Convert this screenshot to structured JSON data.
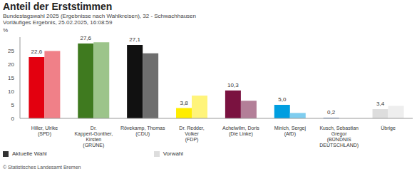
{
  "chart_data": {
    "type": "bar",
    "title": "Anteil der Erststimmen",
    "subtitle": [
      "Bundestagswahl 2025 (Ergebnisse nach Wahlkreisen), 32 - Schwachhausen",
      "Vorläufiges Ergebnis, 25.02.2025, 16:08:59"
    ],
    "y_label": "%",
    "source": "© Statistisches Landesamt Bremen",
    "categories": [
      "Hiller, Ulrike (SPD)",
      "Dr. Kappert-Gonther, Kirsten (GRÜNE)",
      "Rövekamp, Thomas (CDU)",
      "Dr. Redder, Volker (FDP)",
      "Achelwilm, Doris (Die Linke)",
      "Minich, Sergej (AfD)",
      "Kusch, Sebastian Gregor (BÜNDNIS DEUTSCHLAND)",
      "Übrige"
    ],
    "series": [
      {
        "name": "Aktuelle Wahl",
        "color": "#333333",
        "colors": [
          "#e3000f",
          "#3f7a1f",
          "#111111",
          "#ffed00",
          "#7a1240",
          "#009ee0",
          "#1f4e9a",
          "#dddddd"
        ],
        "values": [
          22.6,
          27.6,
          27.1,
          3.8,
          10.3,
          5.0,
          0.2,
          3.4
        ],
        "value_labels": [
          "22,6",
          "27,6",
          "27,1",
          "3,8",
          "10,3",
          "5,0",
          "0,2",
          "3,4"
        ]
      },
      {
        "name": "Vorwahl",
        "color": "#dddddd",
        "colors": [
          "#f08088",
          "#9cc48a",
          "#6e6e6e",
          "#fff47a",
          "#b37f98",
          "#7fcdef",
          "#8fa6cc",
          "#eeeeee"
        ],
        "values": [
          24.9,
          28.1,
          24.0,
          8.4,
          6.5,
          2.0,
          null,
          4.6
        ]
      }
    ],
    "ylim": [
      0,
      30
    ],
    "yticks": [
      0,
      5,
      10,
      15,
      20,
      25
    ],
    "grid": false,
    "data_labels": true
  }
}
